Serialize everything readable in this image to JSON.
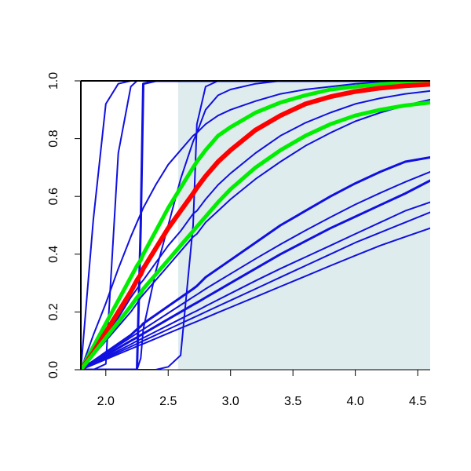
{
  "chart_data": {
    "type": "line",
    "title": "",
    "xlabel": "",
    "ylabel": "",
    "xlim": [
      1.8,
      4.6
    ],
    "ylim": [
      0.0,
      1.0
    ],
    "x_ticks": [
      2.0,
      2.5,
      3.0,
      3.5,
      4.0,
      4.5
    ],
    "x_tick_labels": [
      "2.0",
      "2.5",
      "3.0",
      "3.5",
      "4.0",
      "4.5"
    ],
    "y_ticks": [
      0.0,
      0.2,
      0.4,
      0.6,
      0.8,
      1.0
    ],
    "y_tick_labels": [
      "0.0",
      "0.2",
      "0.4",
      "0.6",
      "0.8",
      "1.0"
    ],
    "grid": false,
    "legend": "none",
    "shaded_region": {
      "x_range": [
        2.58,
        4.6
      ],
      "y_range": [
        0.0,
        1.0
      ],
      "color": "#dfeced"
    },
    "colors": {
      "blue": "#1010e0",
      "red": "#ff0000",
      "green": "#00ee00",
      "axis": "#000000"
    },
    "x": [
      1.8,
      1.9,
      2.0,
      2.1,
      2.2,
      2.25,
      2.28,
      2.3,
      2.4,
      2.5,
      2.6,
      2.7,
      2.73,
      2.8,
      2.9,
      3.0,
      3.2,
      3.4,
      3.6,
      3.8,
      4.0,
      4.2,
      4.4,
      4.6
    ],
    "series": [
      {
        "color": "blue",
        "width": 2,
        "values": [
          0.0,
          0.52,
          0.92,
          0.99,
          1.0,
          1.0,
          1.0,
          1.0,
          1.0,
          1.0,
          1.0,
          1.0,
          1.0,
          1.0,
          1.0,
          1.0,
          1.0,
          1.0,
          1.0,
          1.0,
          1.0,
          1.0,
          1.0,
          1.0
        ]
      },
      {
        "color": "blue",
        "width": 2,
        "values": [
          0.0,
          0.0,
          0.02,
          0.75,
          0.98,
          1.0,
          1.0,
          1.0,
          1.0,
          1.0,
          1.0,
          1.0,
          1.0,
          1.0,
          1.0,
          1.0,
          1.0,
          1.0,
          1.0,
          1.0,
          1.0,
          1.0,
          1.0,
          1.0
        ]
      },
      {
        "color": "blue",
        "width": 3,
        "values": [
          0.0,
          0.0,
          0.0,
          0.0,
          0.0,
          0.0,
          0.5,
          0.99,
          1.0,
          1.0,
          1.0,
          1.0,
          1.0,
          1.0,
          1.0,
          1.0,
          1.0,
          1.0,
          1.0,
          1.0,
          1.0,
          1.0,
          1.0,
          1.0
        ]
      },
      {
        "color": "blue",
        "width": 2,
        "values": [
          0.0,
          0.0,
          0.0,
          0.0,
          0.0,
          0.0,
          0.0,
          0.0,
          0.0,
          0.01,
          0.05,
          0.5,
          0.85,
          0.98,
          1.0,
          1.0,
          1.0,
          1.0,
          1.0,
          1.0,
          1.0,
          1.0,
          1.0,
          1.0
        ]
      },
      {
        "color": "blue",
        "width": 2,
        "values": [
          0.0,
          0.0,
          0.0,
          0.0,
          0.0,
          0.0,
          0.04,
          0.14,
          0.34,
          0.5,
          0.66,
          0.79,
          0.82,
          0.9,
          0.95,
          0.97,
          0.99,
          1.0,
          1.0,
          1.0,
          1.0,
          1.0,
          1.0,
          1.0
        ]
      },
      {
        "color": "blue",
        "width": 2,
        "values": [
          0.0,
          0.12,
          0.23,
          0.35,
          0.46,
          0.51,
          0.54,
          0.56,
          0.64,
          0.71,
          0.76,
          0.81,
          0.82,
          0.85,
          0.88,
          0.9,
          0.93,
          0.955,
          0.97,
          0.98,
          0.99,
          0.995,
          1.0,
          1.0
        ]
      },
      {
        "color": "blue",
        "width": 2,
        "values": [
          0.0,
          0.06,
          0.12,
          0.18,
          0.25,
          0.28,
          0.3,
          0.31,
          0.37,
          0.43,
          0.48,
          0.54,
          0.55,
          0.59,
          0.64,
          0.68,
          0.75,
          0.81,
          0.855,
          0.89,
          0.92,
          0.94,
          0.955,
          0.965
        ]
      },
      {
        "color": "blue",
        "width": 2,
        "values": [
          0.0,
          0.05,
          0.1,
          0.15,
          0.2,
          0.23,
          0.25,
          0.26,
          0.31,
          0.36,
          0.41,
          0.46,
          0.47,
          0.51,
          0.55,
          0.59,
          0.66,
          0.72,
          0.775,
          0.82,
          0.86,
          0.89,
          0.915,
          0.935
        ]
      },
      {
        "color": "blue",
        "width": 3,
        "values": [
          0.0,
          0.03,
          0.06,
          0.09,
          0.12,
          0.14,
          0.15,
          0.16,
          0.19,
          0.22,
          0.25,
          0.28,
          0.29,
          0.32,
          0.35,
          0.38,
          0.44,
          0.5,
          0.55,
          0.6,
          0.645,
          0.685,
          0.72,
          0.735
        ]
      },
      {
        "color": "blue",
        "width": 2,
        "values": [
          0.0,
          0.028,
          0.056,
          0.084,
          0.112,
          0.126,
          0.135,
          0.14,
          0.168,
          0.196,
          0.224,
          0.252,
          0.26,
          0.28,
          0.306,
          0.332,
          0.384,
          0.434,
          0.482,
          0.528,
          0.572,
          0.612,
          0.65,
          0.685
        ]
      },
      {
        "color": "blue",
        "width": 3,
        "values": [
          0.0,
          0.025,
          0.05,
          0.075,
          0.1,
          0.112,
          0.12,
          0.125,
          0.15,
          0.175,
          0.2,
          0.225,
          0.232,
          0.25,
          0.275,
          0.3,
          0.35,
          0.4,
          0.445,
          0.49,
          0.53,
          0.57,
          0.61,
          0.655
        ]
      },
      {
        "color": "blue",
        "width": 2,
        "values": [
          0.0,
          0.022,
          0.044,
          0.066,
          0.088,
          0.1,
          0.106,
          0.11,
          0.132,
          0.154,
          0.176,
          0.198,
          0.204,
          0.22,
          0.242,
          0.264,
          0.308,
          0.35,
          0.39,
          0.43,
          0.47,
          0.51,
          0.55,
          0.58
        ]
      },
      {
        "color": "blue",
        "width": 2,
        "values": [
          0.0,
          0.02,
          0.04,
          0.06,
          0.08,
          0.09,
          0.096,
          0.1,
          0.12,
          0.14,
          0.16,
          0.18,
          0.186,
          0.2,
          0.22,
          0.24,
          0.28,
          0.32,
          0.36,
          0.4,
          0.44,
          0.475,
          0.51,
          0.545
        ]
      },
      {
        "color": "blue",
        "width": 2,
        "values": [
          0.0,
          0.018,
          0.036,
          0.054,
          0.072,
          0.081,
          0.087,
          0.09,
          0.108,
          0.126,
          0.144,
          0.162,
          0.167,
          0.18,
          0.198,
          0.216,
          0.252,
          0.288,
          0.324,
          0.36,
          0.395,
          0.43,
          0.46,
          0.49
        ]
      },
      {
        "color": "green",
        "width": 5,
        "values": [
          0.0,
          0.08,
          0.16,
          0.24,
          0.32,
          0.36,
          0.38,
          0.4,
          0.48,
          0.56,
          0.63,
          0.7,
          0.72,
          0.76,
          0.81,
          0.84,
          0.89,
          0.925,
          0.95,
          0.97,
          0.98,
          0.988,
          0.993,
          0.996
        ]
      },
      {
        "color": "red",
        "width": 6,
        "values": [
          0.0,
          0.06,
          0.13,
          0.2,
          0.27,
          0.31,
          0.33,
          0.35,
          0.42,
          0.49,
          0.55,
          0.61,
          0.63,
          0.67,
          0.72,
          0.76,
          0.83,
          0.88,
          0.92,
          0.945,
          0.963,
          0.975,
          0.983,
          0.988
        ]
      },
      {
        "color": "green",
        "width": 5,
        "values": [
          0.0,
          0.055,
          0.11,
          0.165,
          0.22,
          0.25,
          0.265,
          0.28,
          0.33,
          0.38,
          0.43,
          0.48,
          0.495,
          0.53,
          0.58,
          0.625,
          0.7,
          0.76,
          0.81,
          0.85,
          0.88,
          0.9,
          0.915,
          0.925
        ]
      }
    ]
  }
}
